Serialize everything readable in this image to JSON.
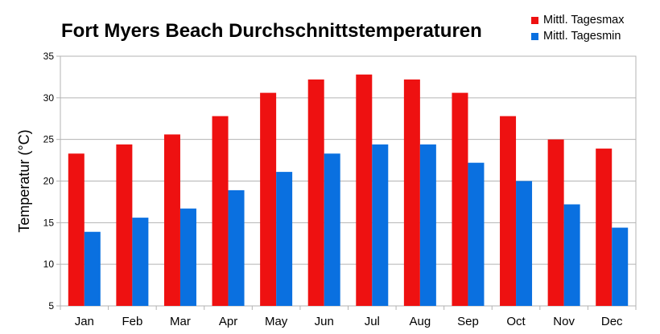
{
  "chart_data": {
    "type": "bar",
    "title": "Fort Myers Beach Durchschnittstemperaturen",
    "xlabel": "",
    "ylabel": "Temperatur (°C)",
    "categories": [
      "Jan",
      "Feb",
      "Mar",
      "Apr",
      "May",
      "Jun",
      "Jul",
      "Aug",
      "Sep",
      "Oct",
      "Nov",
      "Dec"
    ],
    "ylim": [
      5,
      35
    ],
    "yticks": [
      5,
      10,
      15,
      20,
      25,
      30,
      35
    ],
    "grid": true,
    "legend_position": "top-right",
    "series": [
      {
        "name": "Mittl. Tagesmax",
        "color": "#ee1111",
        "values": [
          23.3,
          24.4,
          25.6,
          27.8,
          30.6,
          32.2,
          32.8,
          32.2,
          30.6,
          27.8,
          25.0,
          23.9
        ]
      },
      {
        "name": "Mittl. Tagesmin",
        "color": "#0a70e0",
        "values": [
          13.9,
          15.6,
          16.7,
          18.9,
          21.1,
          23.3,
          24.4,
          24.4,
          22.2,
          20.0,
          17.2,
          14.4
        ]
      }
    ]
  }
}
